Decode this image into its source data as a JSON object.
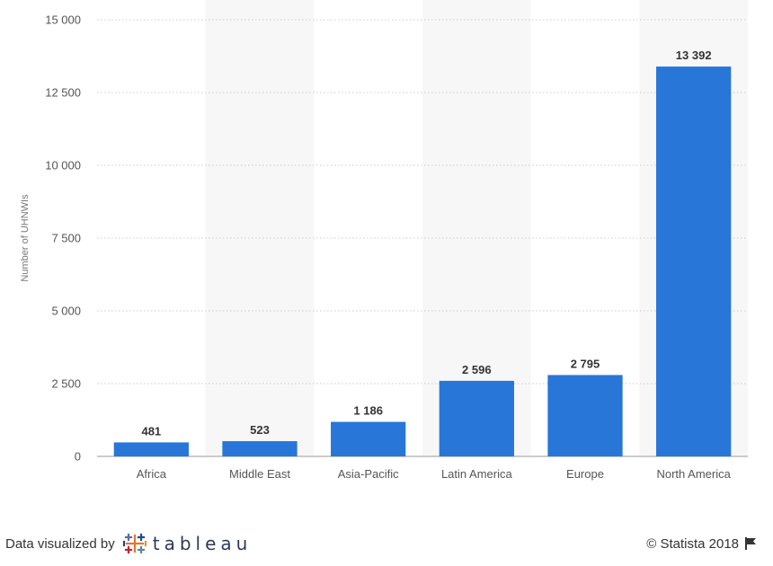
{
  "chart_data": {
    "type": "bar",
    "categories": [
      "Africa",
      "Middle East",
      "Asia-Pacific",
      "Latin America",
      "Europe",
      "North America"
    ],
    "values": [
      481,
      523,
      1186,
      2596,
      2795,
      13392
    ],
    "value_labels": [
      "481",
      "523",
      "1 186",
      "2 596",
      "2 795",
      "13 392"
    ],
    "title": "",
    "xlabel": "",
    "ylabel": "Number of UHNWIs",
    "ylim": [
      0,
      15000
    ],
    "yticks": [
      0,
      2500,
      5000,
      7500,
      10000,
      12500,
      15000
    ],
    "ytick_labels": [
      "0",
      "2 500",
      "5 000",
      "7 500",
      "10 000",
      "12 500",
      "15 000"
    ],
    "grid": true,
    "colors": {
      "bar": "#2876d8",
      "band": "#f7f7f7",
      "grid": "#cccccc",
      "tick_text": "#555555",
      "value_text": "#333333"
    }
  },
  "footer": {
    "left_text": "Data visualized by",
    "logo_text": "tableau",
    "copyright": "© Statista 2018"
  }
}
